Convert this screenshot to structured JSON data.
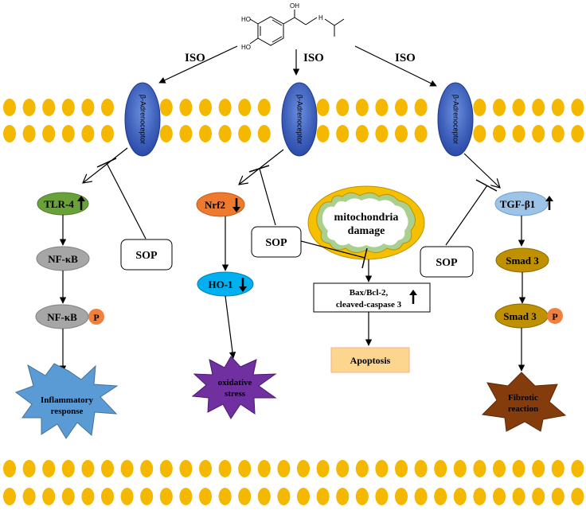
{
  "molecule": {
    "ho_top": "HO",
    "ho_bottom": "HO",
    "oh": "OH",
    "nh": "H"
  },
  "iso_labels": [
    "ISO",
    "ISO",
    "ISO"
  ],
  "receptor_label": "β-Adrenoceptor",
  "sop_label": "SOP",
  "left": {
    "tlr4": "TLR-4",
    "nfkb1": "NF-κB",
    "nfkb2": "NF-κB",
    "p": "P",
    "outcome_line1": "Inflammatory",
    "outcome_line2": "response"
  },
  "middle": {
    "nrf2": "Nrf2",
    "ho1": "HO-1",
    "outcome_line1": "oxidative",
    "outcome_line2": "stress"
  },
  "center": {
    "mito_line1": "mitochondria",
    "mito_line2": "damage",
    "bax_line1": "Bax/Bcl-2,",
    "bax_line2": "cleaved-caspase 3",
    "apoptosis": "Apoptosis"
  },
  "right": {
    "tgf": "TGF-β1",
    "smad1": "Smad 3",
    "smad2": "Smad 3",
    "p": "P",
    "outcome_line1": "Fibrotic",
    "outcome_line2": "reaction"
  },
  "colors": {
    "lipid": "#f5b800",
    "receptor": "#3f66c4",
    "tlr4": "#6aa23a",
    "nfkb": "#a6a6a6",
    "p_circle": "#f08040",
    "inflammatory_star": "#5b9bd5",
    "nrf2": "#ee7a30",
    "ho1": "#00b0f0",
    "oxidative_star": "#7030a0",
    "mito_outer": "#f5c000",
    "mito_inner": "#a9d08e",
    "apoptosis_fill": "#fcd68f",
    "tgf": "#9dc3e6",
    "smad": "#bf9000",
    "fibrotic_star": "#843c0c"
  }
}
